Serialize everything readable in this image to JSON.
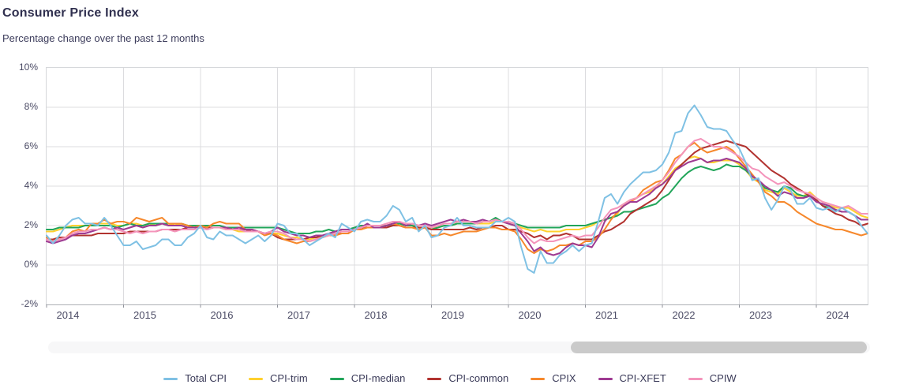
{
  "header": {
    "title": "Consumer Price Index",
    "subtitle": "Percentage change over the past 12 months"
  },
  "chart_data": {
    "type": "line",
    "title": "Consumer Price Index",
    "subtitle": "Percentage change over the past 12 months",
    "frequency": "monthly",
    "x_start": "2014-01",
    "x_end": "2024-09",
    "x_tick_labels": [
      "2014",
      "2015",
      "2016",
      "2017",
      "2018",
      "2019",
      "2020",
      "2021",
      "2022",
      "2023",
      "2024"
    ],
    "y_tick_labels": [
      "10%",
      "8%",
      "6%",
      "4%",
      "2%",
      "0%",
      "-2%"
    ],
    "y_tick_values": [
      10,
      8,
      6,
      4,
      2,
      0,
      -2
    ],
    "ylim": [
      -2,
      10
    ],
    "grid": true,
    "legend_position": "bottom",
    "series": [
      {
        "name": "Total CPI",
        "color": "#7FC1E4",
        "values": [
          1.5,
          1.1,
          1.5,
          2.0,
          2.3,
          2.4,
          2.1,
          2.1,
          2.0,
          2.4,
          2.0,
          1.5,
          1.0,
          1.0,
          1.2,
          0.8,
          0.9,
          1.0,
          1.3,
          1.3,
          1.0,
          1.0,
          1.4,
          1.6,
          2.0,
          1.4,
          1.3,
          1.7,
          1.5,
          1.5,
          1.3,
          1.1,
          1.3,
          1.5,
          1.2,
          1.5,
          2.1,
          2.0,
          1.6,
          1.6,
          1.3,
          1.0,
          1.2,
          1.4,
          1.6,
          1.4,
          2.1,
          1.9,
          1.7,
          2.2,
          2.3,
          2.2,
          2.2,
          2.5,
          3.0,
          2.8,
          2.2,
          2.4,
          1.7,
          2.0,
          1.4,
          1.5,
          1.9,
          2.0,
          2.4,
          2.0,
          2.0,
          1.9,
          1.9,
          1.9,
          2.2,
          2.2,
          2.4,
          2.2,
          0.9,
          -0.2,
          -0.4,
          0.7,
          0.1,
          0.1,
          0.5,
          0.7,
          1.0,
          0.7,
          1.0,
          1.1,
          2.2,
          3.4,
          3.6,
          3.1,
          3.7,
          4.1,
          4.4,
          4.7,
          4.7,
          4.8,
          5.1,
          5.7,
          6.7,
          6.8,
          7.7,
          8.1,
          7.6,
          7.0,
          6.9,
          6.9,
          6.8,
          6.3,
          5.9,
          5.2,
          4.3,
          4.4,
          3.4,
          2.8,
          3.3,
          4.0,
          3.8,
          3.1,
          3.1,
          3.4,
          2.9,
          2.8,
          2.9,
          2.7,
          2.9,
          2.7,
          2.5,
          2.0,
          1.6
        ]
      },
      {
        "name": "CPI-trim",
        "color": "#FFD02E",
        "values": [
          1.7,
          1.7,
          1.8,
          1.9,
          2.0,
          2.0,
          2.0,
          2.0,
          2.1,
          2.1,
          2.1,
          2.0,
          2.0,
          2.1,
          2.1,
          2.0,
          2.1,
          2.0,
          2.1,
          2.1,
          2.0,
          2.1,
          2.0,
          1.9,
          2.0,
          1.9,
          1.9,
          1.9,
          1.8,
          1.8,
          1.7,
          1.7,
          1.7,
          1.7,
          1.6,
          1.6,
          1.6,
          1.5,
          1.4,
          1.4,
          1.3,
          1.3,
          1.4,
          1.4,
          1.5,
          1.5,
          1.6,
          1.6,
          1.8,
          1.9,
          2.0,
          2.0,
          2.0,
          2.0,
          2.1,
          2.1,
          2.1,
          2.1,
          1.9,
          1.9,
          1.9,
          1.9,
          2.0,
          2.0,
          2.1,
          2.1,
          2.1,
          2.1,
          2.1,
          2.1,
          2.2,
          2.2,
          2.1,
          2.0,
          1.9,
          1.8,
          1.7,
          1.8,
          1.7,
          1.7,
          1.7,
          1.8,
          1.8,
          1.8,
          1.9,
          2.0,
          2.2,
          2.3,
          2.4,
          2.6,
          3.1,
          3.3,
          3.4,
          3.6,
          3.7,
          4.0,
          4.1,
          4.5,
          4.9,
          5.1,
          5.4,
          5.5,
          5.4,
          5.2,
          5.2,
          5.3,
          5.3,
          5.3,
          5.1,
          4.8,
          4.4,
          4.2,
          3.8,
          3.7,
          3.6,
          3.9,
          3.7,
          3.5,
          3.5,
          3.7,
          3.4,
          3.2,
          3.1,
          2.9,
          2.9,
          2.9,
          2.7,
          2.5,
          2.4
        ]
      },
      {
        "name": "CPI-median",
        "color": "#22A55A",
        "values": [
          1.8,
          1.8,
          1.9,
          1.9,
          1.9,
          1.9,
          2.0,
          2.0,
          2.0,
          2.0,
          2.0,
          1.9,
          2.0,
          2.1,
          2.0,
          2.0,
          2.1,
          2.1,
          2.1,
          2.1,
          2.1,
          2.1,
          2.0,
          2.0,
          2.0,
          2.0,
          2.0,
          2.0,
          1.9,
          1.9,
          1.9,
          1.9,
          1.9,
          1.9,
          1.9,
          1.9,
          1.9,
          1.8,
          1.7,
          1.6,
          1.6,
          1.6,
          1.7,
          1.7,
          1.8,
          1.7,
          1.8,
          1.8,
          1.9,
          2.0,
          2.0,
          2.0,
          2.0,
          2.0,
          2.0,
          2.1,
          2.0,
          2.0,
          1.9,
          1.9,
          1.8,
          1.9,
          2.0,
          2.0,
          2.1,
          2.1,
          2.1,
          2.1,
          2.2,
          2.2,
          2.4,
          2.2,
          2.2,
          2.1,
          2.0,
          1.9,
          1.9,
          1.9,
          1.9,
          1.9,
          1.9,
          2.0,
          2.0,
          2.0,
          2.0,
          2.1,
          2.2,
          2.3,
          2.4,
          2.5,
          2.7,
          2.7,
          2.8,
          2.9,
          3.0,
          3.1,
          3.4,
          3.6,
          4.0,
          4.4,
          4.7,
          4.9,
          5.0,
          4.9,
          4.8,
          4.9,
          5.1,
          5.0,
          5.0,
          4.8,
          4.5,
          4.3,
          3.9,
          3.8,
          3.7,
          4.0,
          3.9,
          3.6,
          3.5,
          3.5,
          3.3,
          3.0,
          2.9,
          2.8,
          2.7,
          2.7,
          2.5,
          2.3,
          2.3
        ]
      },
      {
        "name": "CPI-common",
        "color": "#B23330",
        "values": [
          1.3,
          1.3,
          1.4,
          1.4,
          1.5,
          1.5,
          1.5,
          1.5,
          1.6,
          1.6,
          1.6,
          1.6,
          1.6,
          1.7,
          1.7,
          1.7,
          1.7,
          1.7,
          1.8,
          1.8,
          1.8,
          1.8,
          1.9,
          1.9,
          1.9,
          1.9,
          1.9,
          1.9,
          1.9,
          1.8,
          1.8,
          1.8,
          1.7,
          1.7,
          1.6,
          1.6,
          1.4,
          1.3,
          1.3,
          1.3,
          1.3,
          1.4,
          1.4,
          1.5,
          1.5,
          1.6,
          1.6,
          1.6,
          1.8,
          1.9,
          1.9,
          1.9,
          1.9,
          1.9,
          2.0,
          2.0,
          1.9,
          1.9,
          1.9,
          1.9,
          1.8,
          1.8,
          1.8,
          1.8,
          1.8,
          1.8,
          1.9,
          1.8,
          1.9,
          1.9,
          2.0,
          2.0,
          1.8,
          1.8,
          1.7,
          1.6,
          1.4,
          1.5,
          1.3,
          1.5,
          1.5,
          1.6,
          1.5,
          1.3,
          1.3,
          1.3,
          1.5,
          1.7,
          1.8,
          2.0,
          2.2,
          2.6,
          2.8,
          3.0,
          3.2,
          3.4,
          3.8,
          4.3,
          4.8,
          5.1,
          5.4,
          5.7,
          5.9,
          6.0,
          6.1,
          6.2,
          6.3,
          6.2,
          6.1,
          6.0,
          5.7,
          5.4,
          5.1,
          4.8,
          4.6,
          4.4,
          4.1,
          3.9,
          3.7,
          3.5,
          3.3,
          3.0,
          2.8,
          2.6,
          2.5,
          2.3,
          2.2,
          2.0,
          2.1
        ]
      },
      {
        "name": "CPIX",
        "color": "#F6882C",
        "values": [
          1.4,
          1.2,
          1.3,
          1.4,
          1.7,
          1.8,
          1.7,
          2.1,
          2.1,
          2.3,
          2.1,
          2.2,
          2.2,
          2.1,
          2.4,
          2.3,
          2.2,
          2.3,
          2.4,
          2.1,
          2.1,
          2.1,
          2.0,
          1.9,
          2.0,
          1.9,
          2.1,
          2.2,
          2.1,
          2.1,
          2.1,
          1.8,
          1.8,
          1.7,
          1.5,
          1.6,
          1.5,
          1.3,
          1.2,
          1.1,
          1.2,
          1.2,
          1.3,
          1.4,
          1.5,
          1.5,
          1.6,
          1.6,
          1.8,
          1.8,
          1.9,
          1.9,
          1.9,
          2.0,
          2.1,
          2.0,
          1.9,
          1.9,
          1.8,
          1.9,
          1.5,
          1.5,
          1.6,
          1.5,
          1.6,
          1.7,
          1.7,
          1.7,
          1.8,
          1.9,
          1.9,
          1.8,
          1.8,
          1.7,
          1.3,
          0.8,
          0.6,
          0.8,
          0.7,
          0.8,
          1.0,
          1.0,
          1.1,
          1.0,
          1.2,
          1.2,
          1.4,
          1.8,
          2.3,
          2.7,
          3.0,
          3.2,
          3.4,
          3.8,
          4.0,
          4.2,
          4.3,
          4.8,
          5.4,
          5.6,
          6.0,
          6.2,
          5.9,
          5.7,
          5.8,
          5.9,
          6.0,
          5.8,
          5.4,
          5.0,
          4.6,
          4.2,
          3.7,
          3.5,
          3.2,
          3.2,
          3.0,
          2.7,
          2.5,
          2.3,
          2.1,
          2.0,
          1.9,
          1.8,
          1.8,
          1.7,
          1.6,
          1.5,
          1.6
        ]
      },
      {
        "name": "CPI-XFET",
        "color": "#9E3A92",
        "values": [
          1.2,
          1.1,
          1.2,
          1.3,
          1.5,
          1.6,
          1.6,
          1.7,
          1.8,
          1.9,
          1.8,
          1.9,
          1.8,
          1.9,
          2.0,
          1.9,
          2.0,
          2.0,
          2.1,
          2.0,
          2.0,
          2.0,
          1.9,
          1.9,
          1.9,
          1.8,
          1.9,
          1.9,
          1.9,
          1.8,
          1.9,
          1.8,
          1.8,
          1.7,
          1.6,
          1.7,
          1.9,
          1.7,
          1.6,
          1.5,
          1.5,
          1.4,
          1.5,
          1.5,
          1.6,
          1.7,
          1.8,
          1.8,
          1.8,
          1.9,
          2.1,
          1.9,
          1.9,
          2.0,
          2.1,
          2.2,
          2.0,
          2.1,
          2.0,
          2.1,
          2.0,
          2.1,
          2.2,
          2.3,
          2.2,
          2.3,
          2.2,
          2.2,
          2.3,
          2.2,
          2.3,
          2.2,
          2.1,
          2.0,
          1.6,
          1.2,
          0.7,
          0.9,
          0.6,
          0.5,
          0.6,
          0.9,
          1.1,
          1.0,
          1.0,
          0.9,
          1.4,
          2.2,
          2.6,
          2.7,
          3.0,
          3.2,
          3.2,
          3.4,
          3.6,
          3.9,
          4.1,
          4.4,
          4.8,
          5.0,
          5.2,
          5.3,
          5.4,
          5.2,
          5.3,
          5.3,
          5.4,
          5.3,
          5.2,
          4.9,
          4.5,
          4.3,
          4.0,
          3.8,
          3.5,
          3.7,
          3.6,
          3.4,
          3.4,
          3.5,
          3.2,
          3.1,
          3.0,
          2.8,
          2.7,
          2.7,
          2.5,
          2.3,
          2.3
        ]
      },
      {
        "name": "CPIW",
        "color": "#F494BB",
        "values": [
          1.3,
          1.2,
          1.3,
          1.4,
          1.6,
          1.7,
          1.7,
          1.8,
          1.8,
          1.9,
          1.8,
          1.8,
          1.7,
          1.6,
          1.7,
          1.6,
          1.7,
          1.7,
          1.8,
          1.8,
          1.7,
          1.8,
          1.8,
          1.8,
          1.9,
          1.8,
          1.9,
          1.9,
          1.8,
          1.8,
          1.8,
          1.7,
          1.7,
          1.7,
          1.6,
          1.7,
          1.7,
          1.6,
          1.4,
          1.3,
          1.3,
          1.2,
          1.3,
          1.4,
          1.5,
          1.6,
          1.7,
          1.7,
          1.8,
          1.9,
          2.0,
          2.0,
          2.0,
          2.1,
          2.2,
          2.2,
          2.1,
          2.1,
          2.0,
          2.0,
          1.9,
          2.0,
          2.1,
          2.1,
          2.2,
          2.2,
          2.2,
          2.1,
          2.2,
          2.2,
          2.3,
          2.2,
          2.2,
          2.1,
          1.8,
          1.4,
          1.1,
          1.3,
          1.2,
          1.2,
          1.3,
          1.4,
          1.5,
          1.4,
          1.5,
          1.5,
          1.9,
          2.4,
          2.8,
          2.9,
          3.1,
          3.3,
          3.4,
          3.6,
          3.8,
          4.0,
          4.3,
          4.7,
          5.2,
          5.6,
          6.0,
          6.3,
          6.4,
          6.2,
          6.0,
          6.0,
          5.9,
          5.7,
          5.5,
          5.2,
          4.9,
          4.8,
          4.5,
          4.3,
          4.1,
          4.2,
          4.0,
          3.8,
          3.7,
          3.6,
          3.4,
          3.2,
          3.1,
          3.0,
          2.9,
          3.0,
          2.8,
          2.6,
          2.6
        ]
      }
    ]
  }
}
